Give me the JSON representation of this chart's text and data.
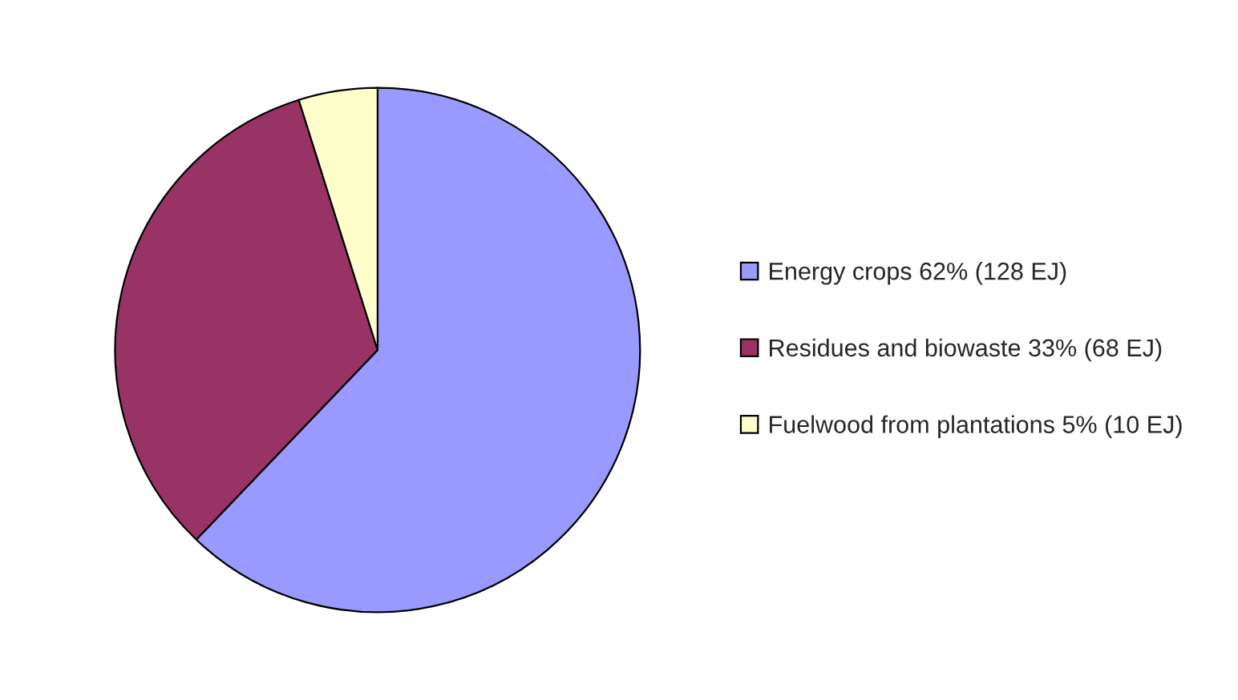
{
  "chart_data": {
    "type": "pie",
    "categories": [
      "Energy crops 62% (128 EJ)",
      "Residues and biowaste 33% (68 EJ)",
      "Fuelwood from plantations 5% (10 EJ)"
    ],
    "values": [
      128,
      68,
      10
    ],
    "colors": [
      "#9999ff",
      "#993366",
      "#ffffcc"
    ],
    "legend": "right"
  }
}
